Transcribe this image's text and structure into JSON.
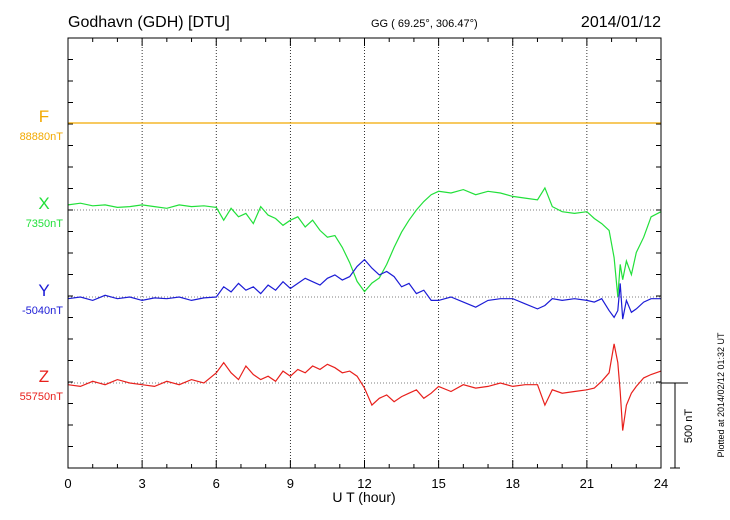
{
  "header": {
    "station": "Godhavn (GDH)  [DTU]",
    "coords": "GG ( 69.25°, 306.47°)",
    "date": "2014/01/12"
  },
  "chart_data": {
    "type": "line",
    "xlabel": "U T (hour)",
    "xlim": [
      0,
      24
    ],
    "xticks": [
      0,
      3,
      6,
      9,
      12,
      15,
      18,
      21,
      24
    ],
    "scale_bar_label": "500 nT",
    "scale_bar_nT": 500,
    "plotted_note": "Plotted at 2014/02/12 01:32 UT",
    "series": [
      {
        "name": "F",
        "baseline_label": "88880nT",
        "color": "#f2a900",
        "x": [
          0,
          24
        ],
        "y": [
          0,
          0
        ]
      },
      {
        "name": "X",
        "baseline_label": "7350nT",
        "color": "#22e03a",
        "x": [
          0,
          0.5,
          1,
          1.5,
          2,
          2.5,
          3,
          3.5,
          4,
          4.5,
          5,
          5.5,
          6,
          6.3,
          6.6,
          6.9,
          7.2,
          7.5,
          7.8,
          8.1,
          8.4,
          8.7,
          9,
          9.3,
          9.6,
          9.9,
          10.2,
          10.5,
          10.8,
          11.1,
          11.4,
          11.7,
          12,
          12.3,
          12.6,
          12.9,
          13.2,
          13.5,
          13.8,
          14.1,
          14.4,
          14.7,
          15,
          15.5,
          16,
          16.5,
          17,
          17.5,
          18,
          18.5,
          19,
          19.3,
          19.6,
          20,
          20.5,
          21,
          21.3,
          21.6,
          21.9,
          22.1,
          22.25,
          22.35,
          22.45,
          22.6,
          22.8,
          23.0,
          23.3,
          23.6,
          24
        ],
        "y": [
          30,
          40,
          25,
          30,
          15,
          20,
          30,
          20,
          10,
          30,
          20,
          25,
          15,
          -60,
          10,
          -40,
          -20,
          -80,
          20,
          -30,
          -50,
          -90,
          -60,
          -40,
          -100,
          -60,
          -120,
          -160,
          -150,
          -220,
          -310,
          -420,
          -480,
          -430,
          -400,
          -320,
          -220,
          -130,
          -60,
          0,
          50,
          90,
          110,
          100,
          120,
          90,
          110,
          100,
          80,
          70,
          60,
          130,
          20,
          -10,
          -20,
          -10,
          -50,
          -80,
          -120,
          -280,
          -510,
          -320,
          -410,
          -300,
          -380,
          -250,
          -160,
          -40,
          -10
        ]
      },
      {
        "name": "Y",
        "baseline_label": "-5040nT",
        "color": "#1c1cd6",
        "x": [
          0,
          0.5,
          1,
          1.5,
          2,
          2.5,
          3,
          3.5,
          4,
          4.5,
          5,
          5.5,
          6,
          6.3,
          6.6,
          6.9,
          7.2,
          7.5,
          7.8,
          8.1,
          8.4,
          8.7,
          9,
          9.3,
          9.6,
          9.9,
          10.2,
          10.5,
          10.8,
          11.1,
          11.4,
          11.7,
          12,
          12.3,
          12.6,
          12.9,
          13.2,
          13.5,
          13.8,
          14.1,
          14.4,
          14.7,
          15,
          15.5,
          16,
          16.5,
          17,
          17.5,
          18,
          18.5,
          19,
          19.3,
          19.6,
          20,
          20.5,
          21,
          21.3,
          21.6,
          21.9,
          22.1,
          22.25,
          22.35,
          22.45,
          22.6,
          22.8,
          23.0,
          23.3,
          23.6,
          24
        ],
        "y": [
          -10,
          0,
          -20,
          10,
          -10,
          0,
          -20,
          -5,
          -10,
          0,
          -20,
          -5,
          0,
          60,
          30,
          80,
          40,
          60,
          20,
          70,
          40,
          90,
          50,
          80,
          110,
          90,
          70,
          110,
          130,
          100,
          120,
          180,
          220,
          170,
          130,
          150,
          120,
          60,
          80,
          20,
          40,
          -20,
          -20,
          0,
          -30,
          -60,
          -20,
          -10,
          -10,
          -40,
          -70,
          -50,
          -10,
          -20,
          -10,
          -20,
          -30,
          -10,
          -80,
          -120,
          -80,
          80,
          -130,
          -20,
          -90,
          -70,
          -30,
          -10,
          -10
        ]
      },
      {
        "name": "Z",
        "baseline_label": "55750nT",
        "color": "#e8201c",
        "x": [
          0,
          0.5,
          1,
          1.5,
          2,
          2.5,
          3,
          3.5,
          4,
          4.5,
          5,
          5.5,
          6,
          6.3,
          6.6,
          6.9,
          7.2,
          7.5,
          7.8,
          8.1,
          8.4,
          8.7,
          9,
          9.3,
          9.6,
          9.9,
          10.2,
          10.5,
          10.8,
          11.1,
          11.4,
          11.7,
          12,
          12.3,
          12.6,
          12.9,
          13.2,
          13.5,
          13.8,
          14.1,
          14.4,
          14.7,
          15,
          15.5,
          16,
          16.5,
          17,
          17.5,
          18,
          18.5,
          19,
          19.3,
          19.6,
          20,
          20.5,
          21,
          21.3,
          21.6,
          21.9,
          22.1,
          22.25,
          22.35,
          22.45,
          22.6,
          22.8,
          23.0,
          23.3,
          23.6,
          24
        ],
        "y": [
          -10,
          -20,
          10,
          -10,
          20,
          0,
          -10,
          -20,
          10,
          -10,
          20,
          0,
          60,
          120,
          60,
          20,
          100,
          50,
          20,
          40,
          10,
          70,
          40,
          80,
          60,
          100,
          80,
          110,
          90,
          60,
          70,
          40,
          -30,
          -130,
          -90,
          -70,
          -110,
          -80,
          -60,
          -40,
          -90,
          -60,
          -20,
          -50,
          -10,
          -30,
          -20,
          0,
          -20,
          -10,
          -10,
          -130,
          -40,
          -60,
          -50,
          -40,
          -30,
          10,
          60,
          230,
          120,
          -50,
          -280,
          -130,
          -60,
          -20,
          30,
          50,
          70
        ]
      }
    ]
  }
}
